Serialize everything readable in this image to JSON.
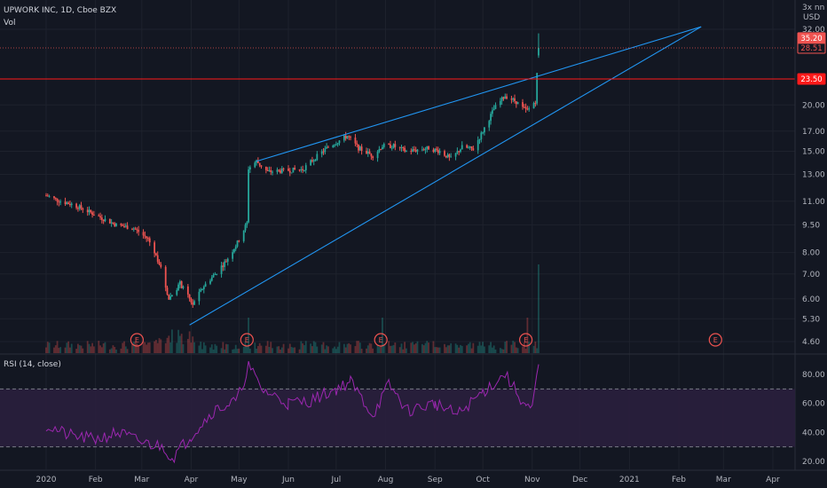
{
  "header": {
    "symbol": "UPWORK INC, 1D, Cboe BZX",
    "volume_label": "Vol",
    "scale_label": "3x nn",
    "currency": "USD"
  },
  "rsi_label": "RSI (14, close)",
  "colors": {
    "background": "#131722",
    "up": "#26a69a",
    "down": "#ef5350",
    "trendline": "#2196f3",
    "hline": "#ff1a1a",
    "rsi": "#9c27b0",
    "rsi_band": "#2a1f3d"
  },
  "chart_data": [
    {
      "type": "candlestick",
      "x_axis_ticks": [
        "2020",
        "Feb",
        "Mar",
        "Apr",
        "May",
        "Jun",
        "Jul",
        "Aug",
        "Sep",
        "Oct",
        "Nov",
        "Dec",
        "2021",
        "Feb",
        "Mar",
        "Apr"
      ],
      "y_axis_ticks": [
        4.6,
        5.3,
        6.0,
        7.0,
        8.0,
        9.5,
        11.0,
        13.0,
        15.0,
        17.0,
        20.0,
        32.0
      ],
      "y_scale": "log",
      "price_labels": [
        "28.51",
        "35.20",
        "23.50"
      ],
      "horizontal_line": 23.5,
      "earnings_markers": [
        "E",
        "E",
        "E",
        "E",
        "E"
      ],
      "earnings_dates": [
        "2020-02-27",
        "2020-05-06",
        "2020-07-29",
        "2020-10-28",
        "2021-02-24"
      ],
      "trendlines": [
        {
          "from": [
            "2020-05-12",
            14.1
          ],
          "to": [
            "2021-02-15",
            32.5
          ]
        },
        {
          "from": [
            "2020-03-31",
            5.1
          ],
          "to": [
            "2021-02-15",
            32.5
          ]
        }
      ],
      "series_anchor_close": [
        [
          "2020-01-01",
          11.4
        ],
        [
          "2020-01-10",
          11.0
        ],
        [
          "2020-01-17",
          10.8
        ],
        [
          "2020-01-24",
          10.5
        ],
        [
          "2020-02-03",
          10.0
        ],
        [
          "2020-02-14",
          9.5
        ],
        [
          "2020-02-25",
          9.3
        ],
        [
          "2020-03-05",
          8.7
        ],
        [
          "2020-03-12",
          7.5
        ],
        [
          "2020-03-18",
          6.0
        ],
        [
          "2020-03-25",
          6.6
        ],
        [
          "2020-04-02",
          5.8
        ],
        [
          "2020-04-09",
          6.5
        ],
        [
          "2020-04-16",
          7.0
        ],
        [
          "2020-04-23",
          7.6
        ],
        [
          "2020-04-30",
          8.5
        ],
        [
          "2020-05-06",
          9.6
        ],
        [
          "2020-05-07",
          13.5
        ],
        [
          "2020-05-12",
          14.1
        ],
        [
          "2020-05-19",
          13.2
        ],
        [
          "2020-05-29",
          13.3
        ],
        [
          "2020-06-10",
          13.4
        ],
        [
          "2020-06-17",
          14.3
        ],
        [
          "2020-06-26",
          15.4
        ],
        [
          "2020-07-08",
          16.5
        ],
        [
          "2020-07-15",
          15.3
        ],
        [
          "2020-07-24",
          14.6
        ],
        [
          "2020-07-30",
          15.5
        ],
        [
          "2020-08-06",
          15.5
        ],
        [
          "2020-08-14",
          15.0
        ],
        [
          "2020-08-28",
          15.3
        ],
        [
          "2020-09-04",
          15.0
        ],
        [
          "2020-09-11",
          14.3
        ],
        [
          "2020-09-18",
          15.4
        ],
        [
          "2020-09-25",
          15.2
        ],
        [
          "2020-10-01",
          17.0
        ],
        [
          "2020-10-08",
          19.5
        ],
        [
          "2020-10-15",
          21.2
        ],
        [
          "2020-10-22",
          20.4
        ],
        [
          "2020-10-26",
          19.6
        ],
        [
          "2020-10-29",
          19.3
        ],
        [
          "2020-11-03",
          20.5
        ],
        [
          "2020-11-05",
          28.5
        ]
      ],
      "rsi_y_axis_ticks": [
        "80.00",
        "60.00",
        "40.00",
        "20.00"
      ],
      "rsi_levels": [
        70,
        30
      ],
      "rsi_series": [
        [
          "2020-01-01",
          45
        ],
        [
          "2020-01-15",
          38
        ],
        [
          "2020-02-01",
          35
        ],
        [
          "2020-02-15",
          40
        ],
        [
          "2020-03-01",
          33
        ],
        [
          "2020-03-15",
          30
        ],
        [
          "2020-03-20",
          22
        ],
        [
          "2020-04-01",
          38
        ],
        [
          "2020-04-15",
          55
        ],
        [
          "2020-04-30",
          62
        ],
        [
          "2020-05-07",
          86
        ],
        [
          "2020-05-15",
          70
        ],
        [
          "2020-06-01",
          60
        ],
        [
          "2020-06-15",
          62
        ],
        [
          "2020-07-01",
          70
        ],
        [
          "2020-07-10",
          75
        ],
        [
          "2020-07-24",
          52
        ],
        [
          "2020-08-03",
          73
        ],
        [
          "2020-08-15",
          55
        ],
        [
          "2020-09-01",
          60
        ],
        [
          "2020-09-15",
          52
        ],
        [
          "2020-10-01",
          68
        ],
        [
          "2020-10-15",
          80
        ],
        [
          "2020-10-28",
          58
        ],
        [
          "2020-11-01",
          55
        ],
        [
          "2020-11-05",
          87
        ]
      ]
    }
  ]
}
